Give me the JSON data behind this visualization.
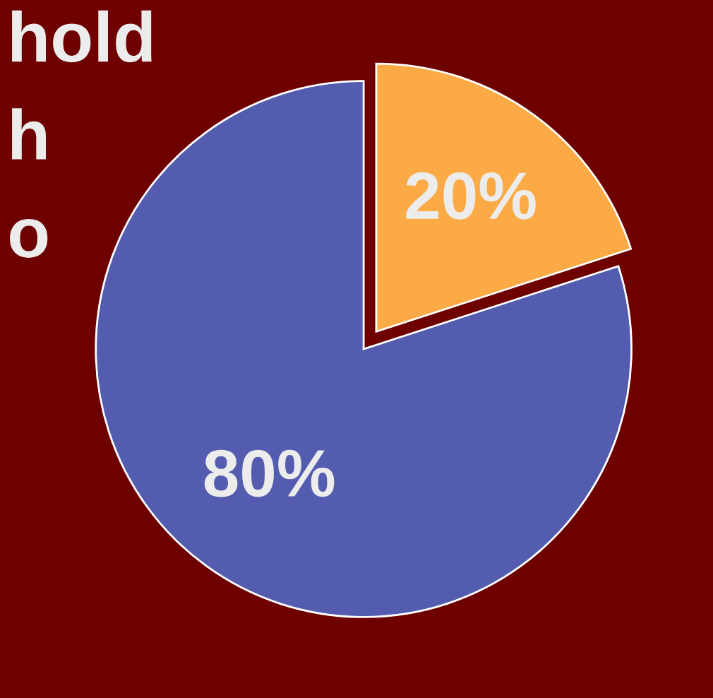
{
  "chart_data": {
    "type": "pie",
    "categories": [
      null,
      null
    ],
    "values": [
      20,
      80
    ],
    "colors": [
      "#fbaa45",
      "#535caf"
    ],
    "value_labels": [
      "20%",
      "80%"
    ],
    "annotations": [
      "hold",
      "h",
      "o"
    ]
  }
}
